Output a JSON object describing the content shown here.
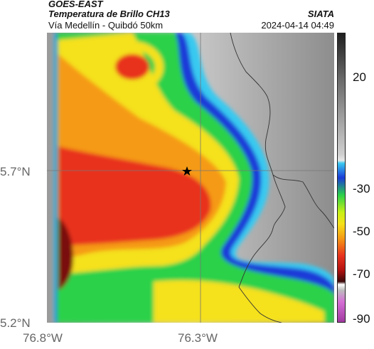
{
  "header": {
    "satellite": "GOES-EAST",
    "product": "Temperatura de Brillo CH13",
    "region": "Vía Medellín - Quibdó 50km",
    "brand": "SIATA",
    "timestamp": "2024-04-14 04:49"
  },
  "axes": {
    "lat_ticks": [
      "5.7°N",
      "5.2°N"
    ],
    "lon_ticks": [
      "76.8°W",
      "76.3°W"
    ]
  },
  "colorbar": {
    "ticks": [
      "20",
      "-30",
      "-50",
      "-70",
      "-90"
    ]
  },
  "colors": {
    "cold_core": "#8b0000",
    "red": "#e8331e",
    "orange": "#f59a14",
    "yellow": "#f5e11a",
    "green": "#2bd14a",
    "blue": "#1a3ad8",
    "cyan": "#39c9f0",
    "warm_gray": "#a9a9a9"
  }
}
